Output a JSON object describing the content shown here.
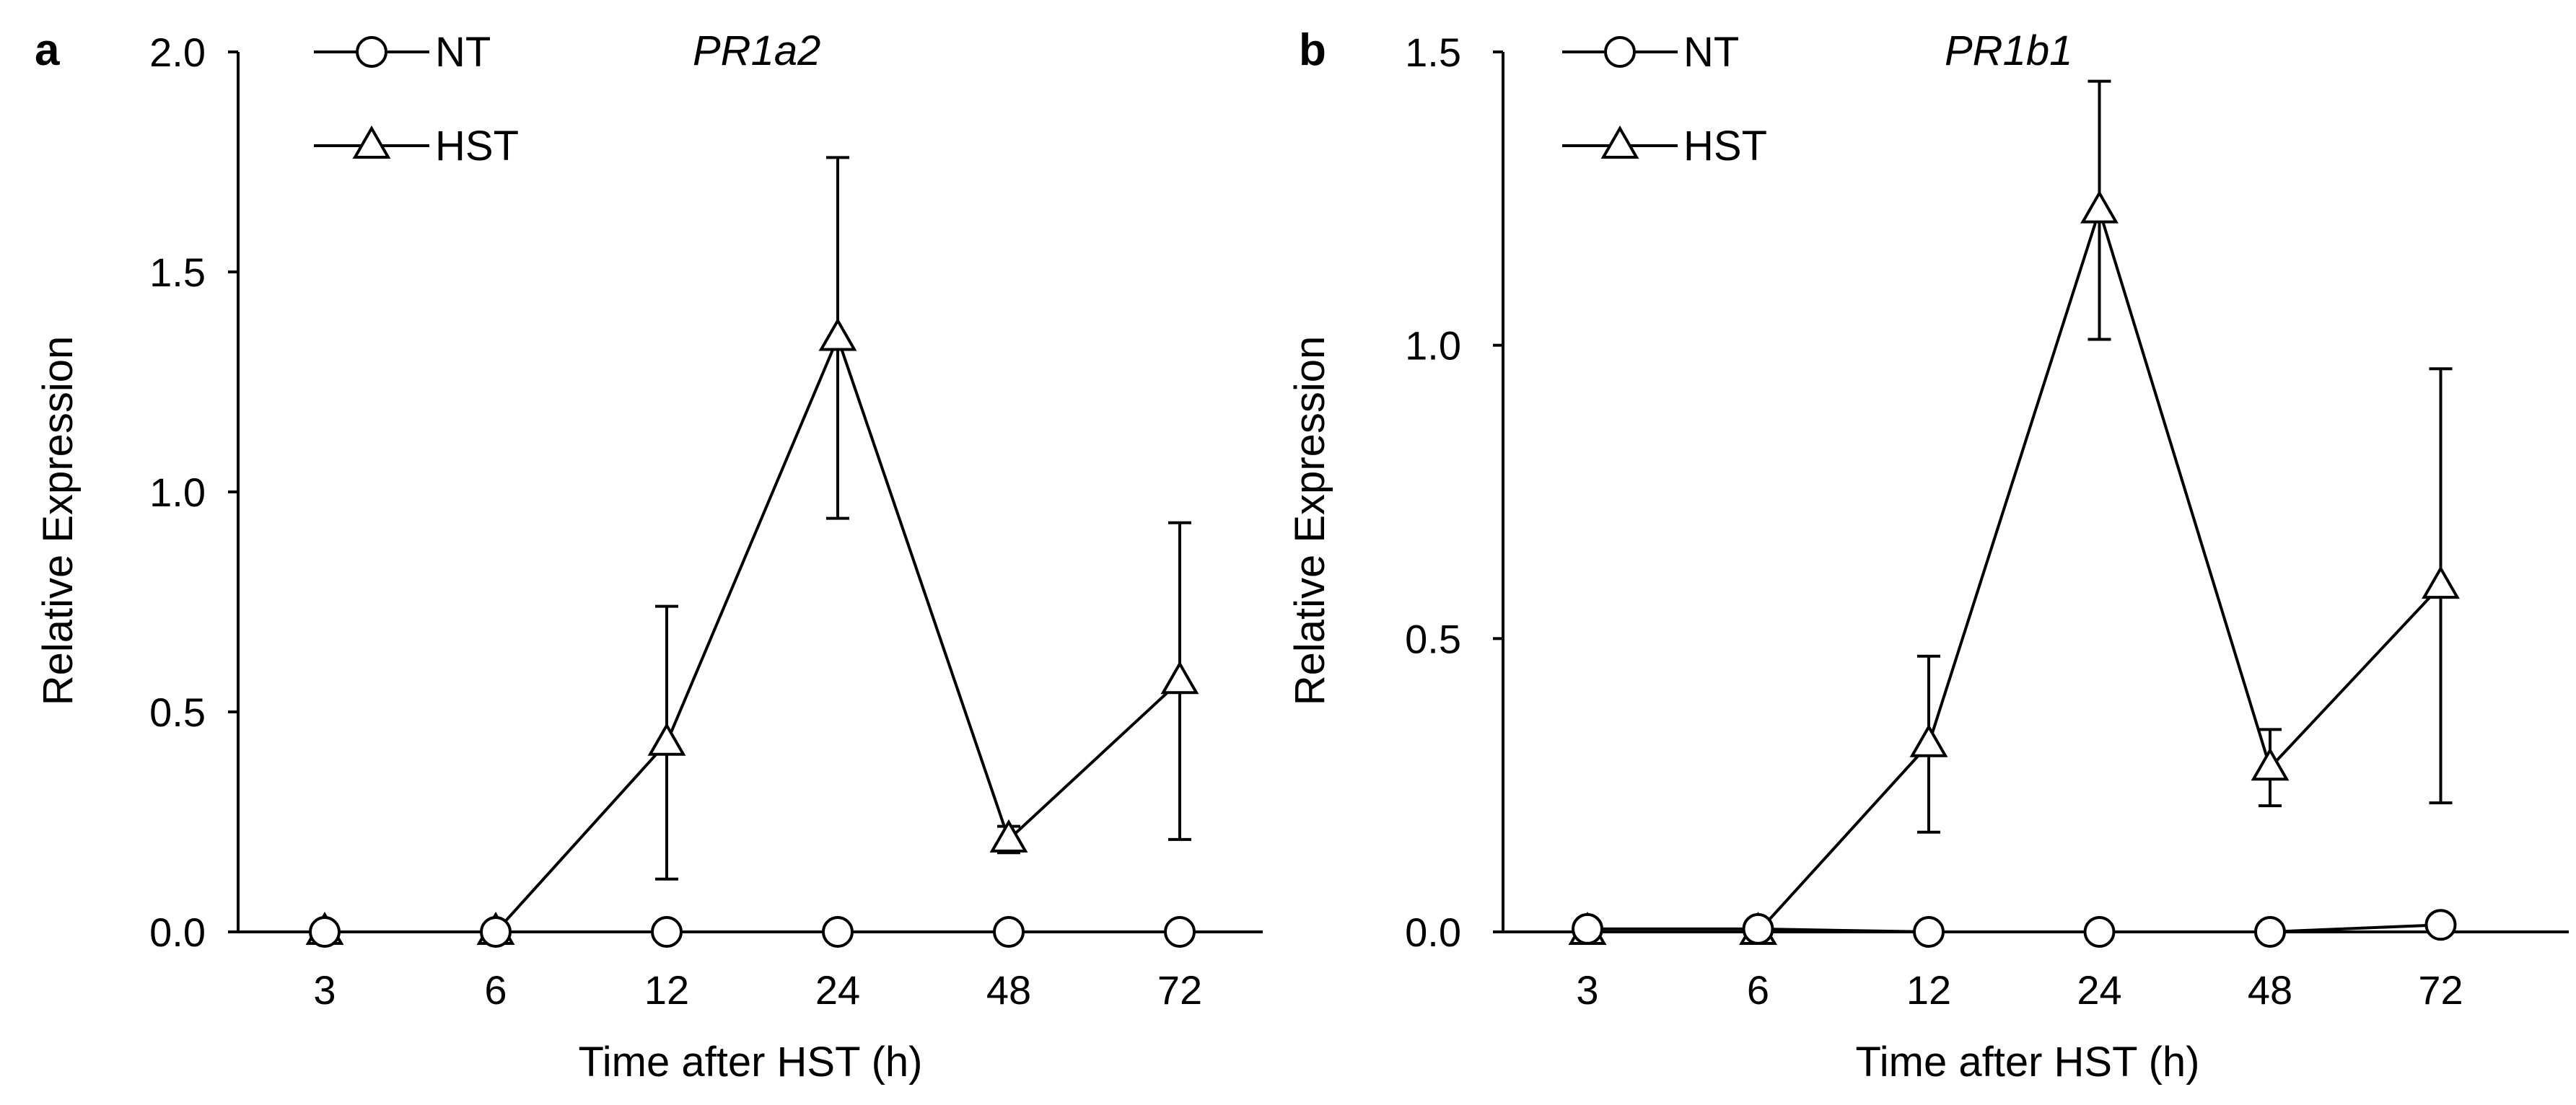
{
  "chart_data": [
    {
      "type": "line",
      "panel_label": "a",
      "title": "PR1a2",
      "xlabel": "Time after HST (h)",
      "ylabel": "Relative Expression",
      "categories": [
        "3",
        "6",
        "12",
        "24",
        "48",
        "72"
      ],
      "ylim": [
        0,
        2.0
      ],
      "yticks": [
        "0.0",
        "0.5",
        "1.0",
        "1.5",
        "2.0"
      ],
      "ytick_values": [
        0,
        0.5,
        1.0,
        1.5,
        2.0
      ],
      "legend_position": "top-left",
      "series": [
        {
          "name": "NT",
          "marker": "circle",
          "values": [
            0,
            0,
            0,
            0,
            0,
            0
          ],
          "errors": [
            0,
            0,
            0,
            0,
            0,
            0
          ]
        },
        {
          "name": "HST",
          "marker": "triangle",
          "values": [
            0,
            0,
            0.43,
            1.35,
            0.21,
            0.57
          ],
          "errors": [
            0,
            0,
            0.31,
            0.41,
            0.03,
            0.36
          ]
        }
      ]
    },
    {
      "type": "line",
      "panel_label": "b",
      "title": "PR1b1",
      "xlabel": "Time after HST (h)",
      "ylabel": "Relative Expression",
      "categories": [
        "3",
        "6",
        "12",
        "24",
        "48",
        "72"
      ],
      "ylim": [
        0,
        1.5
      ],
      "yticks": [
        "0.0",
        "0.5",
        "1.0",
        "1.5"
      ],
      "ytick_values": [
        0,
        0.5,
        1.0,
        1.5
      ],
      "legend_position": "top-left",
      "series": [
        {
          "name": "NT",
          "marker": "circle",
          "values": [
            0.005,
            0.005,
            0,
            0,
            0,
            0.012
          ],
          "errors": [
            0,
            0,
            0,
            0,
            0,
            0
          ]
        },
        {
          "name": "HST",
          "marker": "triangle",
          "values": [
            0,
            0,
            0.32,
            1.23,
            0.28,
            0.59
          ],
          "errors": [
            0,
            0,
            0.15,
            0.22,
            0.065,
            0.37
          ]
        }
      ]
    }
  ]
}
